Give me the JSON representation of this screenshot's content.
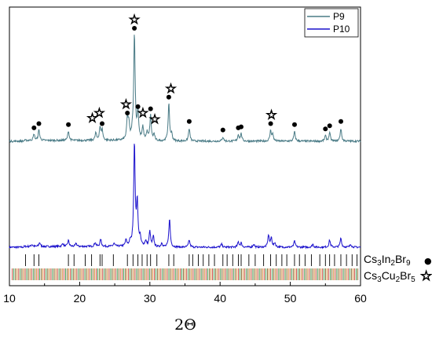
{
  "chart_data": {
    "type": "line",
    "title": "",
    "xlabel": "2Θ",
    "ylabel": "",
    "xlim": [
      10,
      60
    ],
    "xticks": [
      "10",
      "20",
      "30",
      "40",
      "50",
      "60"
    ],
    "grid": false,
    "legend": {
      "placement": "top-right",
      "entries": [
        "P9",
        "P10"
      ]
    },
    "series": [
      {
        "name": "P9",
        "color": "#4a7b86",
        "baseline": 0.0,
        "peaks": [
          [
            13.5,
            0.06
          ],
          [
            14.2,
            0.1
          ],
          [
            18.4,
            0.09
          ],
          [
            22.3,
            0.07
          ],
          [
            22.9,
            0.12
          ],
          [
            23.2,
            0.1
          ],
          [
            26.8,
            0.2
          ],
          [
            27.0,
            0.14
          ],
          [
            27.5,
            0.05
          ],
          [
            27.8,
            1.0
          ],
          [
            28.3,
            0.26
          ],
          [
            29.0,
            0.12
          ],
          [
            29.6,
            0.07
          ],
          [
            30.1,
            0.24
          ],
          [
            30.6,
            0.06
          ],
          [
            32.7,
            0.35
          ],
          [
            33.1,
            0.06
          ],
          [
            35.6,
            0.12
          ],
          [
            40.4,
            0.04
          ],
          [
            42.6,
            0.06
          ],
          [
            43.0,
            0.07
          ],
          [
            47.2,
            0.1
          ],
          [
            47.5,
            0.06
          ],
          [
            50.6,
            0.09
          ],
          [
            55.0,
            0.05
          ],
          [
            55.6,
            0.08
          ],
          [
            57.2,
            0.12
          ]
        ]
      },
      {
        "name": "P10",
        "color": "#1a10cc",
        "baseline": 0.0,
        "peaks": [
          [
            13.2,
            0.02
          ],
          [
            14.3,
            0.04
          ],
          [
            17.6,
            0.03
          ],
          [
            18.4,
            0.06
          ],
          [
            19.5,
            0.03
          ],
          [
            22.2,
            0.04
          ],
          [
            23.0,
            0.07
          ],
          [
            24.9,
            0.03
          ],
          [
            26.6,
            0.06
          ],
          [
            27.2,
            0.04
          ],
          [
            27.8,
            1.0
          ],
          [
            28.2,
            0.42
          ],
          [
            28.6,
            0.08
          ],
          [
            29.4,
            0.05
          ],
          [
            30.0,
            0.15
          ],
          [
            30.5,
            0.1
          ],
          [
            31.7,
            0.04
          ],
          [
            32.8,
            0.28
          ],
          [
            35.6,
            0.07
          ],
          [
            40.2,
            0.03
          ],
          [
            42.6,
            0.05
          ],
          [
            43.0,
            0.04
          ],
          [
            44.8,
            0.03
          ],
          [
            46.9,
            0.12
          ],
          [
            47.3,
            0.09
          ],
          [
            47.8,
            0.04
          ],
          [
            50.6,
            0.06
          ],
          [
            53.2,
            0.03
          ],
          [
            55.6,
            0.07
          ],
          [
            57.2,
            0.09
          ],
          [
            58.6,
            0.03
          ]
        ]
      }
    ],
    "markers": {
      "circle": [
        [
          13.5,
          0.06
        ],
        [
          14.2,
          0.1
        ],
        [
          18.4,
          0.09
        ],
        [
          23.2,
          0.1
        ],
        [
          26.8,
          0.2
        ],
        [
          27.8,
          1.0
        ],
        [
          28.3,
          0.26
        ],
        [
          30.1,
          0.24
        ],
        [
          32.7,
          0.35
        ],
        [
          35.6,
          0.12
        ],
        [
          40.4,
          0.04
        ],
        [
          42.6,
          0.06
        ],
        [
          43.0,
          0.07
        ],
        [
          47.2,
          0.1
        ],
        [
          50.6,
          0.09
        ],
        [
          55.0,
          0.05
        ],
        [
          55.6,
          0.08
        ],
        [
          57.2,
          0.12
        ]
      ],
      "star": [
        [
          21.8,
          0.07
        ],
        [
          22.8,
          0.12
        ],
        [
          26.6,
          0.2
        ],
        [
          27.8,
          1.0
        ],
        [
          29.0,
          0.12
        ],
        [
          30.7,
          0.06
        ],
        [
          33.0,
          0.35
        ],
        [
          47.3,
          0.1
        ]
      ]
    },
    "reference_patterns": [
      {
        "label_parts": [
          [
            "Cs",
            ""
          ],
          [
            "3",
            "sub"
          ],
          [
            "In",
            ""
          ],
          [
            "2",
            "sub"
          ],
          [
            "Br",
            ""
          ],
          [
            "9",
            "sub"
          ]
        ],
        "symbol": "●",
        "color": "#000000",
        "lines": [
          12.3,
          13.5,
          14.2,
          18.4,
          19.2,
          20.8,
          21.7,
          22.9,
          23.2,
          24.8,
          26.8,
          27.6,
          28.3,
          28.9,
          29.6,
          30.1,
          31.0,
          32.7,
          33.4,
          35.6,
          36.1,
          36.9,
          37.6,
          38.4,
          39.2,
          40.4,
          41.0,
          41.8,
          42.6,
          43.0,
          44.1,
          45.0,
          46.2,
          47.2,
          48.0,
          48.8,
          49.5,
          50.6,
          51.3,
          52.1,
          53.0,
          54.2,
          55.0,
          55.6,
          56.3,
          57.2,
          58.0,
          58.8,
          59.5
        ]
      },
      {
        "label_parts": [
          [
            "Cs",
            ""
          ],
          [
            "3",
            "sub"
          ],
          [
            "Cu",
            ""
          ],
          [
            "2",
            "sub"
          ],
          [
            "Br",
            ""
          ],
          [
            "5",
            "sub"
          ]
        ],
        "symbol": "★",
        "colors": [
          "#c0392b",
          "#2e8b3a",
          "#7a5a1a",
          "#d07a20"
        ],
        "start": 10.4,
        "end": 59.8,
        "step": 0.23
      }
    ]
  }
}
